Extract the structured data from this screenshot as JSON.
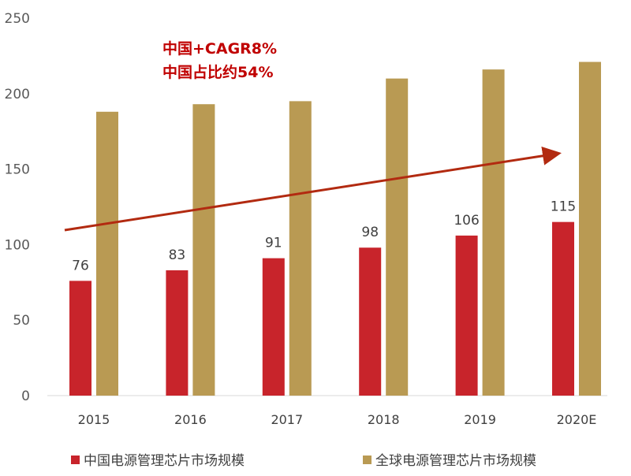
{
  "chart_data": {
    "type": "bar",
    "categories": [
      "2015",
      "2016",
      "2017",
      "2018",
      "2019",
      "2020E"
    ],
    "series": [
      {
        "name": "中国电源管理芯片市场规模",
        "values": [
          76,
          83,
          91,
          98,
          106,
          115
        ],
        "color": "#c8242b",
        "data_labels": [
          "76",
          "83",
          "91",
          "98",
          "106",
          "115"
        ]
      },
      {
        "name": "全球电源管理芯片市场规模",
        "values": [
          188,
          193,
          195,
          210,
          216,
          221
        ],
        "color": "#b99a53"
      }
    ],
    "ylim": [
      0,
      250
    ],
    "yticks": [
      0,
      50,
      100,
      150,
      200,
      250
    ],
    "grid": false,
    "legend": "bottom",
    "annotations": [
      "中国+CAGR8%",
      "中国占比约54%"
    ],
    "trend_arrow_color": "#b22a10",
    "annotation_color": "#c00000"
  }
}
